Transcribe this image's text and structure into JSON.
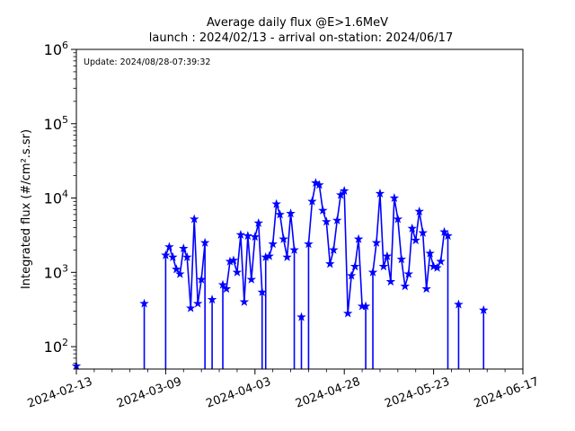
{
  "chart_data": {
    "type": "line",
    "title": "Average daily flux @E>1.6MeV",
    "subtitle": "launch : 2024/02/13 - arrival on-station: 2024/06/17",
    "annotation": "Update: 2024/08/28-07:39:32",
    "ylabel": "Integrated flux (#/cm².s.sr)",
    "yscale": "log",
    "ylim": [
      50,
      1000000
    ],
    "xlim": [
      "2024-02-13",
      "2024-06-17"
    ],
    "xticks": [
      "2024-02-13",
      "2024-03-09",
      "2024-04-03",
      "2024-04-28",
      "2024-05-23",
      "2024-06-17"
    ],
    "yticks": [
      {
        "base": "10",
        "exp": "2",
        "value": 100
      },
      {
        "base": "10",
        "exp": "3",
        "value": 1000
      },
      {
        "base": "10",
        "exp": "4",
        "value": 10000
      },
      {
        "base": "10",
        "exp": "5",
        "value": 100000
      },
      {
        "base": "10",
        "exp": "6",
        "value": 1000000
      }
    ],
    "grid": false,
    "color": "#0000ff",
    "marker": "star",
    "series": [
      {
        "segments": [
          [
            [
              "2024-02-13",
              55
            ]
          ],
          [
            [
              "2024-03-03",
              380
            ]
          ],
          [
            [
              "2024-03-09",
              1700
            ],
            [
              "2024-03-10",
              2200
            ],
            [
              "2024-03-11",
              1600
            ],
            [
              "2024-03-12",
              1100
            ],
            [
              "2024-03-13",
              950
            ],
            [
              "2024-03-14",
              2100
            ],
            [
              "2024-03-15",
              1600
            ],
            [
              "2024-03-16",
              330
            ],
            [
              "2024-03-17",
              5200
            ],
            [
              "2024-03-18",
              380
            ],
            [
              "2024-03-19",
              800
            ],
            [
              "2024-03-20",
              2500
            ]
          ],
          [
            [
              "2024-03-22",
              430
            ]
          ],
          [
            [
              "2024-03-25",
              680
            ],
            [
              "2024-03-26",
              600
            ],
            [
              "2024-03-27",
              1400
            ],
            [
              "2024-03-28",
              1450
            ],
            [
              "2024-03-29",
              1000
            ],
            [
              "2024-03-30",
              3200
            ],
            [
              "2024-03-31",
              400
            ],
            [
              "2024-04-01",
              3100
            ],
            [
              "2024-04-02",
              800
            ],
            [
              "2024-04-03",
              3000
            ],
            [
              "2024-04-04",
              4600
            ],
            [
              "2024-04-05",
              540
            ]
          ],
          [
            [
              "2024-04-06",
              1600
            ],
            [
              "2024-04-07",
              1650
            ],
            [
              "2024-04-08",
              2400
            ],
            [
              "2024-04-09",
              8300
            ],
            [
              "2024-04-10",
              6000
            ],
            [
              "2024-04-11",
              2800
            ],
            [
              "2024-04-12",
              1600
            ],
            [
              "2024-04-13",
              6200
            ],
            [
              "2024-04-14",
              2000
            ]
          ],
          [
            [
              "2024-04-16",
              250
            ]
          ],
          [
            [
              "2024-04-18",
              2400
            ],
            [
              "2024-04-19",
              9000
            ],
            [
              "2024-04-20",
              16000
            ],
            [
              "2024-04-21",
              15000
            ],
            [
              "2024-04-22",
              6800
            ],
            [
              "2024-04-23",
              4800
            ],
            [
              "2024-04-24",
              1300
            ],
            [
              "2024-04-25",
              2000
            ],
            [
              "2024-04-26",
              5000
            ],
            [
              "2024-04-27",
              11000
            ],
            [
              "2024-04-28",
              12500
            ],
            [
              "2024-04-29",
              280
            ],
            [
              "2024-04-30",
              900
            ],
            [
              "2024-05-01",
              1200
            ],
            [
              "2024-05-02",
              2800
            ],
            [
              "2024-05-03",
              350
            ],
            [
              "2024-05-04",
              350
            ]
          ],
          [
            [
              "2024-05-06",
              1000
            ],
            [
              "2024-05-07",
              2500
            ],
            [
              "2024-05-08",
              11500
            ],
            [
              "2024-05-09",
              1200
            ],
            [
              "2024-05-10",
              1650
            ],
            [
              "2024-05-11",
              750
            ],
            [
              "2024-05-12",
              10000
            ],
            [
              "2024-05-13",
              5200
            ],
            [
              "2024-05-14",
              1500
            ],
            [
              "2024-05-15",
              650
            ],
            [
              "2024-05-16",
              950
            ],
            [
              "2024-05-17",
              3900
            ],
            [
              "2024-05-18",
              2700
            ],
            [
              "2024-05-19",
              6600
            ],
            [
              "2024-05-20",
              3400
            ],
            [
              "2024-05-21",
              600
            ],
            [
              "2024-05-22",
              1800
            ],
            [
              "2024-05-23",
              1200
            ],
            [
              "2024-05-24",
              1150
            ],
            [
              "2024-05-25",
              1400
            ],
            [
              "2024-05-26",
              3500
            ],
            [
              "2024-05-27",
              3100
            ]
          ],
          [
            [
              "2024-05-30",
              370
            ]
          ],
          [
            [
              "2024-06-06",
              310
            ]
          ]
        ]
      }
    ]
  }
}
